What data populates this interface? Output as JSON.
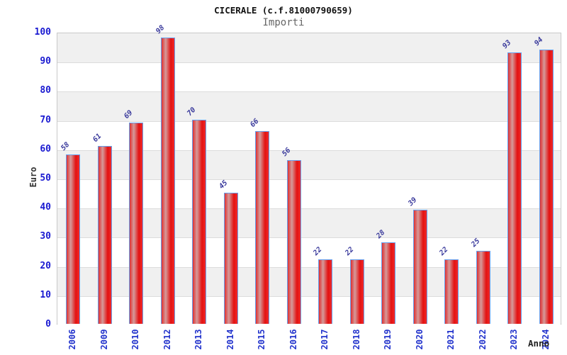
{
  "title": "CICERALE (c.f.81000790659)",
  "subtitle": "Importi",
  "chart_data": {
    "type": "bar",
    "title": "CICERALE (c.f.81000790659)",
    "subtitle": "Importi",
    "categories": [
      "2006",
      "2009",
      "2010",
      "2012",
      "2013",
      "2014",
      "2015",
      "2016",
      "2017",
      "2018",
      "2019",
      "2020",
      "2021",
      "2022",
      "2023",
      "2024"
    ],
    "values": [
      58,
      61,
      69,
      98,
      70,
      45,
      66,
      56,
      22,
      22,
      28,
      39,
      22,
      25,
      93,
      94
    ],
    "xlabel": "Anno",
    "ylabel": "Euro",
    "ylim": [
      0,
      100
    ],
    "yticks": [
      0,
      10,
      20,
      30,
      40,
      50,
      60,
      70,
      80,
      90,
      100
    ],
    "grid": "horizontal gridlines every 10 with alternating gray/white bands",
    "legend": "none"
  },
  "colors": {
    "background": "#ffffff",
    "band_gray": "#f0f0f0",
    "grid_line": "#dcdcdc",
    "plot_border": "#c9c9c9",
    "bar_fill_edge": "#e03030",
    "bar_fill_highlight": "#d59a9a",
    "bar_fill_deep": "#e31111",
    "bar_border": "#66a0ee",
    "y_tick_label": "#1a1ad1",
    "x_tick_label": "#2233cc",
    "value_label": "#3a3a9c",
    "title_color": "#111111",
    "subtitle_color": "#666666",
    "axis_title_color": "#333333"
  }
}
